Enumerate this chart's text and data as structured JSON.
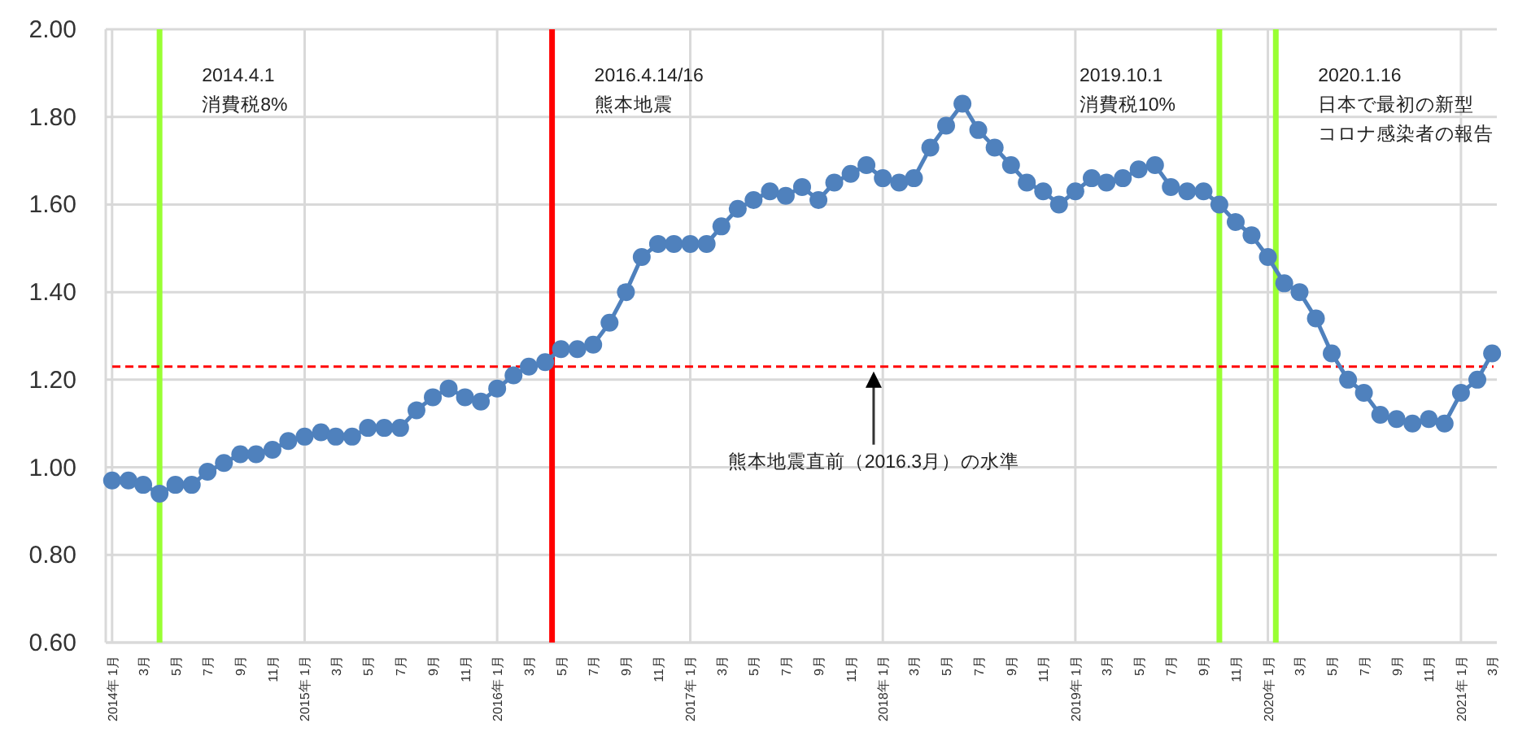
{
  "chart_data": {
    "type": "line",
    "x": [
      "2014-01",
      "2014-02",
      "2014-03",
      "2014-04",
      "2014-05",
      "2014-06",
      "2014-07",
      "2014-08",
      "2014-09",
      "2014-10",
      "2014-11",
      "2014-12",
      "2015-01",
      "2015-02",
      "2015-03",
      "2015-04",
      "2015-05",
      "2015-06",
      "2015-07",
      "2015-08",
      "2015-09",
      "2015-10",
      "2015-11",
      "2015-12",
      "2016-01",
      "2016-02",
      "2016-03",
      "2016-04",
      "2016-05",
      "2016-06",
      "2016-07",
      "2016-08",
      "2016-09",
      "2016-10",
      "2016-11",
      "2016-12",
      "2017-01",
      "2017-02",
      "2017-03",
      "2017-04",
      "2017-05",
      "2017-06",
      "2017-07",
      "2017-08",
      "2017-09",
      "2017-10",
      "2017-11",
      "2017-12",
      "2018-01",
      "2018-02",
      "2018-03",
      "2018-04",
      "2018-05",
      "2018-06",
      "2018-07",
      "2018-08",
      "2018-09",
      "2018-10",
      "2018-11",
      "2018-12",
      "2019-01",
      "2019-02",
      "2019-03",
      "2019-04",
      "2019-05",
      "2019-06",
      "2019-07",
      "2019-08",
      "2019-09",
      "2019-10",
      "2019-11",
      "2019-12",
      "2020-01",
      "2020-02",
      "2020-03",
      "2020-04",
      "2020-05",
      "2020-06",
      "2020-07",
      "2020-08",
      "2020-09",
      "2020-10",
      "2020-11",
      "2020-12",
      "2021-01",
      "2021-02",
      "2021-03"
    ],
    "series": [
      {
        "color": "#4f81bd",
        "values": [
          0.97,
          0.97,
          0.96,
          0.94,
          0.96,
          0.96,
          0.99,
          1.01,
          1.03,
          1.03,
          1.04,
          1.06,
          1.07,
          1.08,
          1.07,
          1.07,
          1.09,
          1.09,
          1.09,
          1.13,
          1.16,
          1.18,
          1.16,
          1.15,
          1.18,
          1.21,
          1.23,
          1.24,
          1.27,
          1.27,
          1.28,
          1.33,
          1.4,
          1.48,
          1.51,
          1.51,
          1.51,
          1.51,
          1.55,
          1.59,
          1.61,
          1.63,
          1.62,
          1.64,
          1.61,
          1.65,
          1.67,
          1.69,
          1.66,
          1.65,
          1.66,
          1.73,
          1.78,
          1.83,
          1.77,
          1.73,
          1.69,
          1.65,
          1.63,
          1.6,
          1.63,
          1.66,
          1.65,
          1.66,
          1.68,
          1.69,
          1.64,
          1.63,
          1.63,
          1.6,
          1.56,
          1.53,
          1.48,
          1.42,
          1.4,
          1.34,
          1.26,
          1.2,
          1.17,
          1.12,
          1.11,
          1.1,
          1.11,
          1.1,
          1.17,
          1.2,
          1.26
        ]
      }
    ],
    "xlim": [
      "2013-12-20",
      "2021-03-10"
    ],
    "xticks": [
      {
        "value": "2014-01",
        "label": "2014年 1月"
      },
      {
        "value": "2014-03",
        "label": "3月"
      },
      {
        "value": "2014-05",
        "label": "5月"
      },
      {
        "value": "2014-07",
        "label": "7月"
      },
      {
        "value": "2014-09",
        "label": "9月"
      },
      {
        "value": "2014-11",
        "label": "11月"
      },
      {
        "value": "2015-01",
        "label": "2015年 1月"
      },
      {
        "value": "2015-03",
        "label": "3月"
      },
      {
        "value": "2015-05",
        "label": "5月"
      },
      {
        "value": "2015-07",
        "label": "7月"
      },
      {
        "value": "2015-09",
        "label": "9月"
      },
      {
        "value": "2015-11",
        "label": "11月"
      },
      {
        "value": "2016-01",
        "label": "2016年 1月"
      },
      {
        "value": "2016-03",
        "label": "3月"
      },
      {
        "value": "2016-05",
        "label": "5月"
      },
      {
        "value": "2016-07",
        "label": "7月"
      },
      {
        "value": "2016-09",
        "label": "9月"
      },
      {
        "value": "2016-11",
        "label": "11月"
      },
      {
        "value": "2017-01",
        "label": "2017年 1月"
      },
      {
        "value": "2017-03",
        "label": "3月"
      },
      {
        "value": "2017-05",
        "label": "5月"
      },
      {
        "value": "2017-07",
        "label": "7月"
      },
      {
        "value": "2017-09",
        "label": "9月"
      },
      {
        "value": "2017-11",
        "label": "11月"
      },
      {
        "value": "2018-01",
        "label": "2018年 1月"
      },
      {
        "value": "2018-03",
        "label": "3月"
      },
      {
        "value": "2018-05",
        "label": "5月"
      },
      {
        "value": "2018-07",
        "label": "7月"
      },
      {
        "value": "2018-09",
        "label": "9月"
      },
      {
        "value": "2018-11",
        "label": "11月"
      },
      {
        "value": "2019-01",
        "label": "2019年 1月"
      },
      {
        "value": "2019-03",
        "label": "3月"
      },
      {
        "value": "2019-05",
        "label": "5月"
      },
      {
        "value": "2019-07",
        "label": "7月"
      },
      {
        "value": "2019-09",
        "label": "9月"
      },
      {
        "value": "2019-11",
        "label": "11月"
      },
      {
        "value": "2020-01",
        "label": "2020年 1月"
      },
      {
        "value": "2020-03",
        "label": "3月"
      },
      {
        "value": "2020-05",
        "label": "5月"
      },
      {
        "value": "2020-07",
        "label": "7月"
      },
      {
        "value": "2020-09",
        "label": "9月"
      },
      {
        "value": "2020-11",
        "label": "11月"
      },
      {
        "value": "2021-01",
        "label": "2021年 1月"
      },
      {
        "value": "2021-03",
        "label": "3月"
      }
    ],
    "ylim": [
      0.6,
      2.0
    ],
    "yticks": [
      {
        "value": 0.6,
        "label": "0.60"
      },
      {
        "value": 0.8,
        "label": "0.80"
      },
      {
        "value": 1.0,
        "label": "1.00"
      },
      {
        "value": 1.2,
        "label": "1.20"
      },
      {
        "value": 1.4,
        "label": "1.40"
      },
      {
        "value": 1.6,
        "label": "1.60"
      },
      {
        "value": 1.8,
        "label": "1.80"
      },
      {
        "value": 2.0,
        "label": "2.00"
      }
    ],
    "ref_lines": [
      {
        "axis": "x",
        "value": "2014-04-01",
        "label": "2014.4.1\n消費税8%",
        "color": "#99ff33"
      },
      {
        "axis": "x",
        "value": "2016-04-14",
        "label": "2016.4.14/16\n熊本地震",
        "color": "#ff0000"
      },
      {
        "axis": "x",
        "value": "2019-10-01",
        "label": "2019.10.1\n消費税10%",
        "color": "#99ff33"
      },
      {
        "axis": "x",
        "value": "2020-01-16",
        "label": "2020.1.16\n日本で最初の新型コロナ感染者の報告",
        "color": "#99ff33"
      },
      {
        "axis": "y",
        "value": 1.23,
        "color": "#ff0000",
        "line_style": "dashed"
      }
    ],
    "annotations": [
      "熊本地震直前（2016.3月）の水準"
    ],
    "grid": true,
    "marker": "circle",
    "line_style": "solid"
  }
}
